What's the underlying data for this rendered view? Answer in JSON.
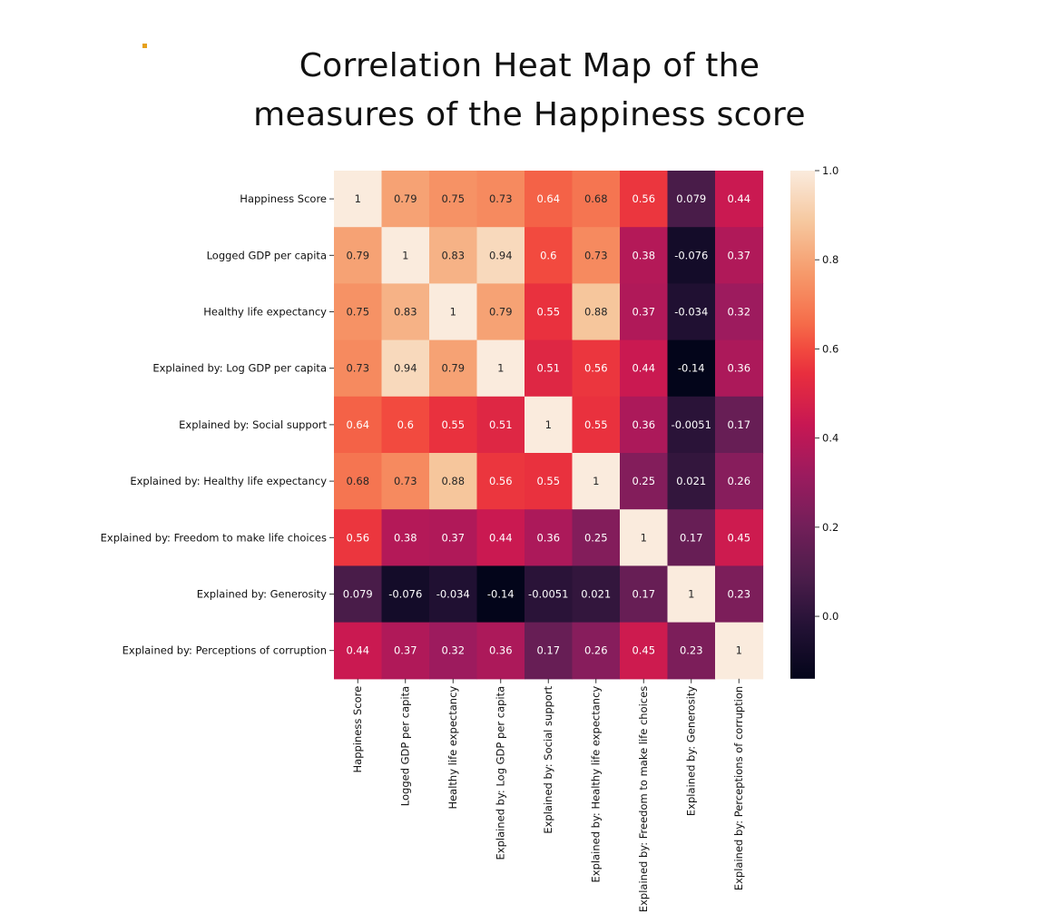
{
  "bullet_color": "#e6a11c",
  "title_lines": [
    "Correlation Heat Map of the",
    "measures of the Happiness score"
  ],
  "chart_data": {
    "type": "heatmap",
    "title": "Correlation Heat Map of the measures of the Happiness score",
    "labels": [
      "Happiness Score",
      "Logged GDP per capita",
      "Healthy life expectancy",
      "Explained by: Log GDP per capita",
      "Explained by: Social support",
      "Explained by: Healthy life expectancy",
      "Explained by: Freedom to make life choices",
      "Explained by: Generosity",
      "Explained by: Perceptions of corruption"
    ],
    "matrix": [
      [
        1,
        0.79,
        0.75,
        0.73,
        0.64,
        0.68,
        0.56,
        0.079,
        0.44
      ],
      [
        0.79,
        1,
        0.83,
        0.94,
        0.6,
        0.73,
        0.38,
        -0.076,
        0.37
      ],
      [
        0.75,
        0.83,
        1,
        0.79,
        0.55,
        0.88,
        0.37,
        -0.034,
        0.32
      ],
      [
        0.73,
        0.94,
        0.79,
        1,
        0.51,
        0.56,
        0.44,
        -0.14,
        0.36
      ],
      [
        0.64,
        0.6,
        0.55,
        0.51,
        1,
        0.55,
        0.36,
        -0.0051,
        0.17
      ],
      [
        0.68,
        0.73,
        0.88,
        0.56,
        0.55,
        1,
        0.25,
        0.021,
        0.26
      ],
      [
        0.56,
        0.38,
        0.37,
        0.44,
        0.36,
        0.25,
        1,
        0.17,
        0.45
      ],
      [
        0.079,
        -0.076,
        -0.034,
        -0.14,
        -0.0051,
        0.021,
        0.17,
        1,
        0.23
      ],
      [
        0.44,
        0.37,
        0.32,
        0.36,
        0.17,
        0.26,
        0.45,
        0.23,
        1
      ]
    ],
    "colormap": "rocket",
    "vmin": -0.14,
    "vmax": 1.0,
    "colorbar_ticks": [
      "0.0",
      "0.2",
      "0.4",
      "0.6",
      "0.8",
      "1.0"
    ],
    "annotate": true
  }
}
